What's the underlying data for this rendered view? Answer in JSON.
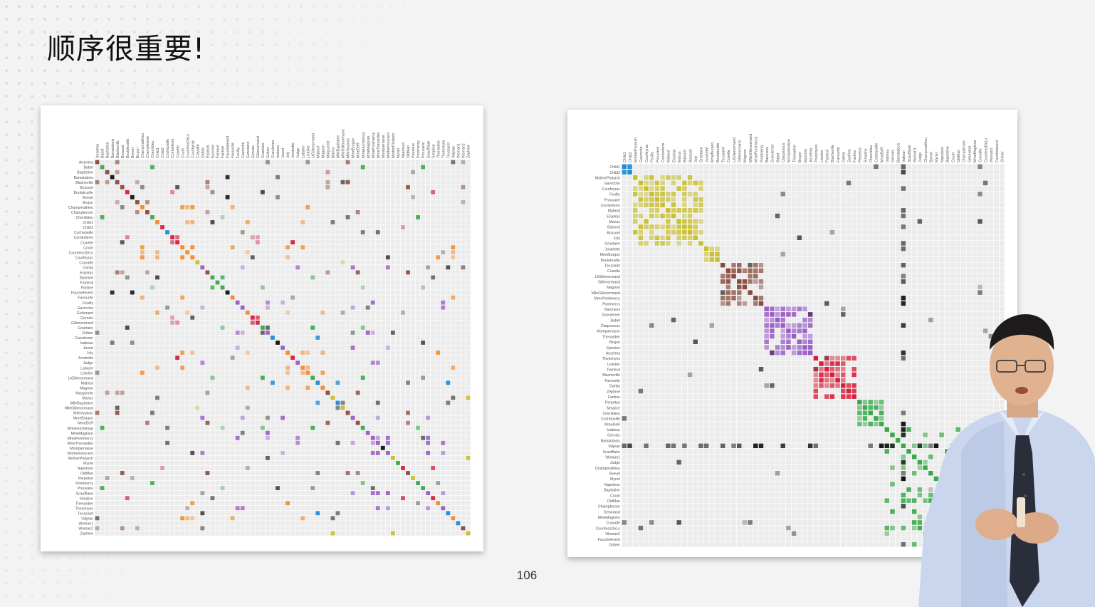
{
  "slide": {
    "title": "顺序很重要!",
    "page_number": "106"
  },
  "figures": {
    "left_matrix": {
      "description_kind": "adjacency-matrix",
      "ordering": "alphabetical",
      "row_labels": [
        "Anzelma",
        "Babet",
        "Baptistine",
        "Bamatabois",
        "Blacheville",
        "Bossuet",
        "Boulatruelle",
        "Brevet",
        "Brujon",
        "Champmathieu",
        "Champtercier",
        "Chenildieu",
        "Child1",
        "Child2",
        "Cochepaille",
        "Combeferre",
        "Cosette",
        "Count",
        "CountessDeLo",
        "Courfeyrac",
        "Cravatte",
        "Dahlia",
        "Enjolras",
        "Eponine",
        "Fameuil",
        "Fantine",
        "Fauchelevent",
        "Favourite",
        "Feuilly",
        "Gavroche",
        "Geborand",
        "Gervais",
        "Gillenormand",
        "Grantaire",
        "Gribier",
        "Gueulemer",
        "Isabeau",
        "Javert",
        "Joly",
        "Jondrette",
        "Judge",
        "Labarre",
        "Listolier",
        "LtGillenormand",
        "Mabeuf",
        "Magnon",
        "Marguerite",
        "Marius",
        "MlleBaptistine",
        "MlleGillenormand",
        "MlleVaubois",
        "MmeBurgon",
        "MmeDeR",
        "MmeHucheloup",
        "MmeMagloire",
        "MmePontmercy",
        "MmeThenardier",
        "Montparnasse",
        "MotherInnocent",
        "MotherPlutarch",
        "Myriel",
        "Napoleon",
        "OldMan",
        "Perpetue",
        "Pontmercy",
        "Prouvaire",
        "Scaufflaire",
        "Simplice",
        "Thenardier",
        "Tholomyes",
        "Toussaint",
        "Valjean",
        "Woman1",
        "Woman2",
        "Zephine"
      ]
    },
    "right_matrix": {
      "description_kind": "adjacency-matrix",
      "ordering": "clustered",
      "row_labels": [
        "Child1",
        "Child2",
        "MotherPlutarch",
        "Gavroche",
        "Courfeyrac",
        "Feuilly",
        "Prouvaire",
        "Combeferre",
        "Mabeuf",
        "Enjolras",
        "Marius",
        "Bahorel",
        "Bossuet",
        "Joly",
        "Grantaire",
        "Jondrette",
        "MmeBurgon",
        "Boulatruelle",
        "Toussaint",
        "Cosette",
        "LtGillenormand",
        "Gillenormand",
        "Magnon",
        "MlleGillenormand",
        "MmePontmercy",
        "Pontmercy",
        "Baroness",
        "Gueulemer",
        "Babet",
        "Claquesous",
        "Montparnasse",
        "Thenardier",
        "Brujon",
        "Eponine",
        "Anzelma",
        "Tholomyes",
        "Listolier",
        "Fameuil",
        "Blacheville",
        "Favourite",
        "Dahlia",
        "Zephine",
        "Fantine",
        "Perpetue",
        "Simplice",
        "Chenildieu",
        "Cochepaille",
        "MmeDeR",
        "Isabeau",
        "Gervais",
        "Bamatabois",
        "Valjean",
        "Scaufflaire",
        "Woman1",
        "Judge",
        "Champmathieu",
        "Brevet",
        "Myriel",
        "Napoleon",
        "Baptistine",
        "Count",
        "OldMan",
        "Champtercier",
        "Geborand",
        "MmeMagloire",
        "Cravatte",
        "CountessDeLo",
        "Woman2",
        "Fauchelevent",
        "Gribier"
      ]
    }
  },
  "colors": {
    "cluster_yellow": "#c9bf2c",
    "cluster_red": "#d81f3a",
    "cluster_green": "#3aa94b",
    "cluster_purple": "#9a5cc7",
    "cluster_blue": "#1f8bd6",
    "cluster_brown": "#8b4a3c",
    "cluster_orange": "#f08a2a",
    "cell_black": "#111111",
    "cell_empty": "#ececec"
  }
}
